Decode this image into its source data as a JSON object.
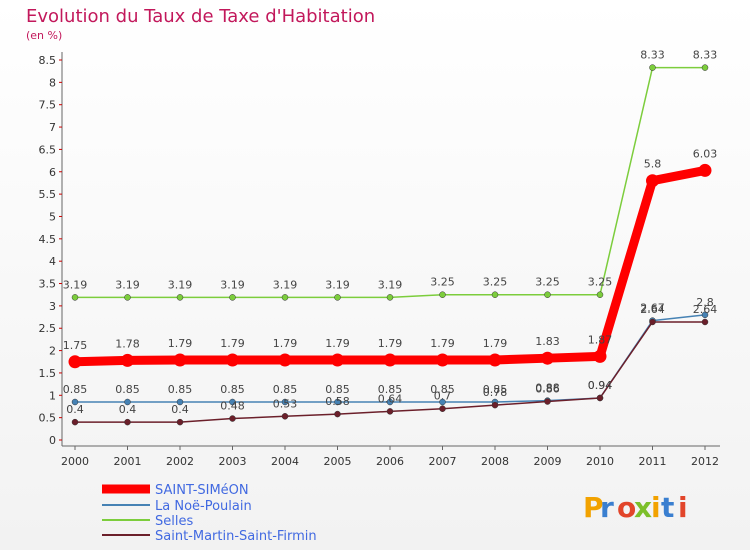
{
  "chart_data": {
    "type": "line",
    "title": "Evolution du Taux de Taxe d'Habitation",
    "unit_label": "(en %)",
    "categories": [
      "2000",
      "2001",
      "2002",
      "2003",
      "2004",
      "2005",
      "2006",
      "2007",
      "2008",
      "2009",
      "2010",
      "2011",
      "2012"
    ],
    "ylim": [
      0,
      8.5
    ],
    "yticks": [
      "0",
      "0.5",
      "1",
      "1.5",
      "2",
      "2.5",
      "3",
      "3.5",
      "4",
      "4.5",
      "5",
      "5.5",
      "6",
      "6.5",
      "7",
      "7.5",
      "8",
      "8.5"
    ],
    "grid": false,
    "legend_position": "bottom-left",
    "series": [
      {
        "name": "SAINT-SIMéON",
        "color": "#ff0000",
        "values": [
          1.75,
          1.78,
          1.79,
          1.79,
          1.79,
          1.79,
          1.79,
          1.79,
          1.79,
          1.83,
          1.87,
          5.8,
          6.03
        ],
        "labels": [
          "1.75",
          "1.78",
          "1.79",
          "1.79",
          "1.79",
          "1.79",
          "1.79",
          "1.79",
          "1.79",
          "1.83",
          "1.87",
          "5.8",
          "6.03"
        ]
      },
      {
        "name": "La Noë-Poulain",
        "color": "#4682b4",
        "values": [
          0.85,
          0.85,
          0.85,
          0.85,
          0.85,
          0.85,
          0.85,
          0.85,
          0.85,
          0.88,
          0.94,
          2.67,
          2.8
        ],
        "labels": [
          "0.85",
          "0.85",
          "0.85",
          "0.85",
          "0.85",
          "0.85",
          "0.85",
          "0.85",
          "0.85",
          "0.88",
          "0.94",
          "2.67",
          "2.8"
        ]
      },
      {
        "name": "Selles",
        "color": "#7ccd3c",
        "values": [
          3.19,
          3.19,
          3.19,
          3.19,
          3.19,
          3.19,
          3.19,
          3.25,
          3.25,
          3.25,
          3.25,
          8.33,
          8.33
        ],
        "labels": [
          "3.19",
          "3.19",
          "3.19",
          "3.19",
          "3.19",
          "3.19",
          "3.19",
          "3.25",
          "3.25",
          "3.25",
          "3.25",
          "8.33",
          "8.33"
        ]
      },
      {
        "name": "Saint-Martin-Saint-Firmin",
        "color": "#6b1f2a",
        "values": [
          0.4,
          0.4,
          0.4,
          0.48,
          0.53,
          0.58,
          0.64,
          0.7,
          0.78,
          0.86,
          0.94,
          2.64,
          2.64
        ],
        "labels": [
          "0.4",
          "0.4",
          "0.4",
          "0.48",
          "0.53",
          "0.58",
          "0.64",
          "0.7",
          "0.78",
          "0.86",
          "0.94",
          "2.64",
          "2.64"
        ]
      }
    ]
  },
  "branding": {
    "logo_text": "Proxiti"
  }
}
